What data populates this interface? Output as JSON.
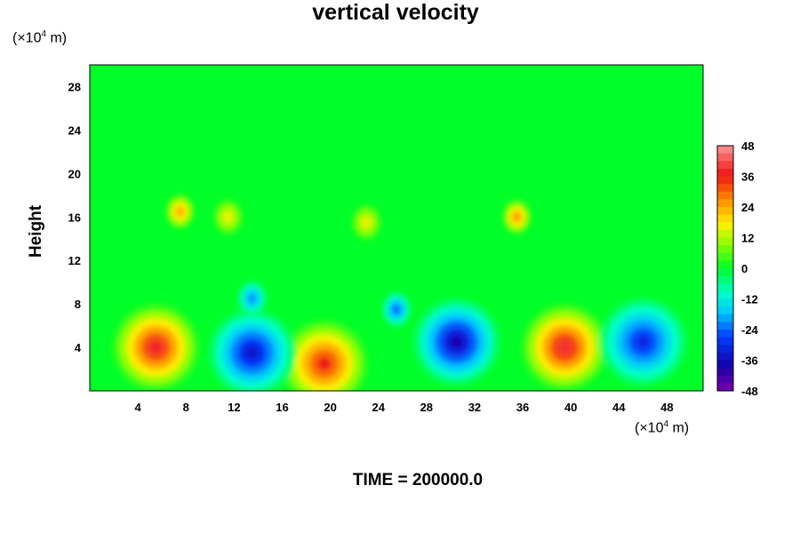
{
  "chart_data": {
    "type": "heatmap",
    "title": "vertical velocity",
    "xlabel": "",
    "ylabel": "Height",
    "x_unit_prefix": "(×10",
    "x_unit_exp": "4",
    "x_unit_suffix": " m)",
    "y_unit_prefix": "(×10",
    "y_unit_exp": "4",
    "y_unit_suffix": " m)",
    "xlim": [
      0,
      51
    ],
    "ylim": [
      0,
      30
    ],
    "x_ticks": [
      4,
      8,
      12,
      16,
      20,
      24,
      28,
      32,
      36,
      40,
      44,
      48
    ],
    "y_ticks": [
      4,
      8,
      12,
      16,
      20,
      24,
      28
    ],
    "colorbar": {
      "range": [
        -48,
        48
      ],
      "ticks": [
        48,
        36,
        24,
        12,
        0,
        -12,
        -24,
        -36,
        -48
      ]
    },
    "features": [
      {
        "x": 5.5,
        "y": 4.0,
        "value": 45
      },
      {
        "x": 19.5,
        "y": 2.5,
        "value": 42
      },
      {
        "x": 39.5,
        "y": 4.0,
        "value": 46
      },
      {
        "x": 13.5,
        "y": 3.5,
        "value": -40
      },
      {
        "x": 30.5,
        "y": 4.5,
        "value": -44
      },
      {
        "x": 25.5,
        "y": 7.5,
        "value": -30
      },
      {
        "x": 46.0,
        "y": 4.5,
        "value": -36
      },
      {
        "x": 7.5,
        "y": 16.5,
        "value": 30
      },
      {
        "x": 35.5,
        "y": 16.0,
        "value": 32
      },
      {
        "x": 11.5,
        "y": 16.0,
        "value": 20
      },
      {
        "x": 23.0,
        "y": 15.5,
        "value": 20
      },
      {
        "x": 13.5,
        "y": 8.5,
        "value": -26
      }
    ]
  },
  "footer": {
    "time_text": "TIME = 200000.0"
  }
}
